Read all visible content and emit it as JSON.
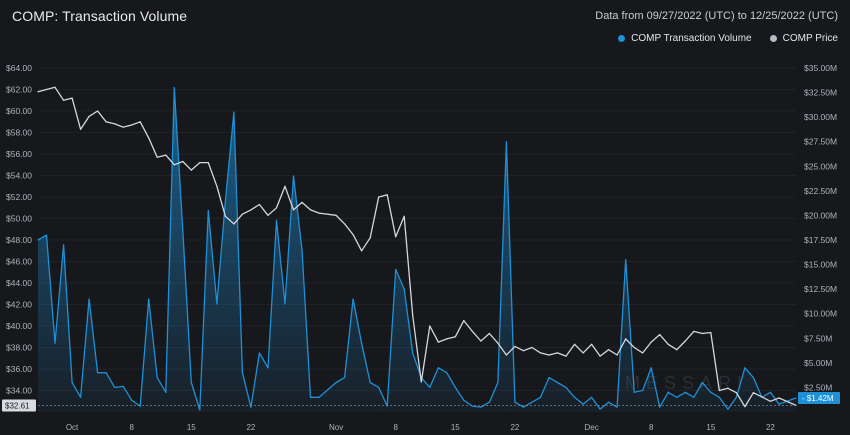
{
  "header": {
    "title": "COMP: Transaction Volume",
    "date_range": "Data from 09/27/2022 (UTC) to 12/25/2022 (UTC)"
  },
  "legend": {
    "items": [
      {
        "label": "COMP Transaction Volume",
        "color": "#1e90d6"
      },
      {
        "label": "COMP Price",
        "color": "#b7bac2"
      }
    ]
  },
  "watermark": "MESSARI",
  "colors": {
    "background": "#17181c",
    "volume": "#1e90d6",
    "price": "#d5d7dc",
    "grid": "#2a2d34"
  },
  "chart_data": {
    "type": "line",
    "title": "COMP: Transaction Volume",
    "x_label": "",
    "x_ticks": [
      "Oct",
      "8",
      "15",
      "22",
      "Nov",
      "8",
      "15",
      "22",
      "Dec",
      "8",
      "15",
      "22"
    ],
    "x_tick_dates": [
      "2022-10-01",
      "2022-10-08",
      "2022-10-15",
      "2022-10-22",
      "2022-11-01",
      "2022-11-08",
      "2022-11-15",
      "2022-11-22",
      "2022-12-01",
      "2022-12-08",
      "2022-12-15",
      "2022-12-22"
    ],
    "x_range": [
      "2022-09-27",
      "2022-12-25"
    ],
    "left_axis": {
      "label": "COMP Price",
      "unit": "$",
      "range": [
        32,
        64
      ],
      "ticks": [
        "$34.00",
        "$36.00",
        "$38.00",
        "$40.00",
        "$42.00",
        "$44.00",
        "$46.00",
        "$48.00",
        "$50.00",
        "$52.00",
        "$54.00",
        "$56.00",
        "$58.00",
        "$60.00",
        "$62.00",
        "$64.00"
      ],
      "current_value_label": "$32.61"
    },
    "right_axis": {
      "label": "COMP Transaction Volume",
      "unit": "$M",
      "range": [
        0,
        35
      ],
      "ticks": [
        "$2.50M",
        "$5.00M",
        "$7.50M",
        "$10.00M",
        "$12.50M",
        "$15.00M",
        "$17.50M",
        "$20.00M",
        "$22.50M",
        "$25.00M",
        "$27.50M",
        "$30.00M",
        "$32.50M",
        "$35.00M"
      ],
      "current_value_label": "$1.42M"
    },
    "grid": true,
    "legend_position": "top-right",
    "series": [
      {
        "name": "COMP Transaction Volume",
        "axis": "right",
        "style": "area",
        "points": [
          [
            "2022-09-27",
            17.5
          ],
          [
            "2022-09-28",
            18.0
          ],
          [
            "2022-09-29",
            7.0
          ],
          [
            "2022-09-30",
            17.0
          ],
          [
            "2022-10-01",
            3.0
          ],
          [
            "2022-10-02",
            1.5
          ],
          [
            "2022-10-03",
            11.5
          ],
          [
            "2022-10-04",
            4.0
          ],
          [
            "2022-10-05",
            4.0
          ],
          [
            "2022-10-06",
            2.5
          ],
          [
            "2022-10-07",
            2.6
          ],
          [
            "2022-10-08",
            1.2
          ],
          [
            "2022-10-09",
            0.6
          ],
          [
            "2022-10-10",
            11.5
          ],
          [
            "2022-10-11",
            3.5
          ],
          [
            "2022-10-12",
            2.0
          ],
          [
            "2022-10-13",
            33.0
          ],
          [
            "2022-10-14",
            18.5
          ],
          [
            "2022-10-15",
            3.0
          ],
          [
            "2022-10-16",
            0.2
          ],
          [
            "2022-10-17",
            20.5
          ],
          [
            "2022-10-18",
            11.0
          ],
          [
            "2022-10-19",
            21.5
          ],
          [
            "2022-10-20",
            30.5
          ],
          [
            "2022-10-21",
            4.0
          ],
          [
            "2022-10-22",
            0.5
          ],
          [
            "2022-10-23",
            6.0
          ],
          [
            "2022-10-24",
            4.5
          ],
          [
            "2022-10-25",
            19.5
          ],
          [
            "2022-10-26",
            11.0
          ],
          [
            "2022-10-27",
            24.0
          ],
          [
            "2022-10-28",
            16.5
          ],
          [
            "2022-10-29",
            1.5
          ],
          [
            "2022-10-30",
            1.5
          ],
          [
            "2022-11-01",
            3.0
          ],
          [
            "2022-11-02",
            3.5
          ],
          [
            "2022-11-03",
            11.5
          ],
          [
            "2022-11-04",
            7.0
          ],
          [
            "2022-11-05",
            3.0
          ],
          [
            "2022-11-06",
            2.5
          ],
          [
            "2022-11-07",
            0.6
          ],
          [
            "2022-11-08",
            14.5
          ],
          [
            "2022-11-09",
            12.5
          ],
          [
            "2022-11-10",
            6.0
          ],
          [
            "2022-11-11",
            3.5
          ],
          [
            "2022-11-12",
            2.5
          ],
          [
            "2022-11-13",
            4.5
          ],
          [
            "2022-11-14",
            4.0
          ],
          [
            "2022-11-15",
            2.5
          ],
          [
            "2022-11-16",
            1.2
          ],
          [
            "2022-11-17",
            0.6
          ],
          [
            "2022-11-18",
            0.5
          ],
          [
            "2022-11-19",
            1.0
          ],
          [
            "2022-11-20",
            3.0
          ],
          [
            "2022-11-21",
            27.5
          ],
          [
            "2022-11-22",
            1.0
          ],
          [
            "2022-11-23",
            0.5
          ],
          [
            "2022-11-24",
            1.0
          ],
          [
            "2022-11-25",
            1.5
          ],
          [
            "2022-11-26",
            3.5
          ],
          [
            "2022-11-27",
            3.0
          ],
          [
            "2022-11-28",
            2.5
          ],
          [
            "2022-11-29",
            1.5
          ],
          [
            "2022-11-30",
            0.8
          ],
          [
            "2022-12-01",
            1.5
          ],
          [
            "2022-12-02",
            0.3
          ],
          [
            "2022-12-03",
            1.0
          ],
          [
            "2022-12-04",
            0.5
          ],
          [
            "2022-12-05",
            15.5
          ],
          [
            "2022-12-06",
            2.0
          ],
          [
            "2022-12-07",
            2.2
          ],
          [
            "2022-12-08",
            4.5
          ],
          [
            "2022-12-09",
            0.5
          ],
          [
            "2022-12-10",
            2.0
          ],
          [
            "2022-12-11",
            1.5
          ],
          [
            "2022-12-12",
            2.0
          ],
          [
            "2022-12-13",
            1.5
          ],
          [
            "2022-12-14",
            3.0
          ],
          [
            "2022-12-15",
            2.0
          ],
          [
            "2022-12-16",
            1.5
          ],
          [
            "2022-12-17",
            0.3
          ],
          [
            "2022-12-18",
            1.5
          ],
          [
            "2022-12-19",
            4.5
          ],
          [
            "2022-12-20",
            3.5
          ],
          [
            "2022-12-21",
            1.5
          ],
          [
            "2022-12-22",
            2.0
          ],
          [
            "2022-12-23",
            0.8
          ],
          [
            "2022-12-25",
            1.42
          ]
        ]
      },
      {
        "name": "COMP Price",
        "axis": "left",
        "style": "line",
        "points": [
          [
            "2022-09-27",
            61.8
          ],
          [
            "2022-09-28",
            62.0
          ],
          [
            "2022-09-29",
            62.2
          ],
          [
            "2022-09-30",
            61.0
          ],
          [
            "2022-10-01",
            61.2
          ],
          [
            "2022-10-02",
            58.3
          ],
          [
            "2022-10-03",
            59.5
          ],
          [
            "2022-10-04",
            60.0
          ],
          [
            "2022-10-05",
            59.0
          ],
          [
            "2022-10-06",
            58.8
          ],
          [
            "2022-10-07",
            58.5
          ],
          [
            "2022-10-08",
            58.7
          ],
          [
            "2022-10-09",
            59.0
          ],
          [
            "2022-10-10",
            57.5
          ],
          [
            "2022-10-11",
            55.7
          ],
          [
            "2022-10-12",
            55.9
          ],
          [
            "2022-10-13",
            55.0
          ],
          [
            "2022-10-14",
            55.3
          ],
          [
            "2022-10-15",
            54.5
          ],
          [
            "2022-10-16",
            55.2
          ],
          [
            "2022-10-17",
            55.2
          ],
          [
            "2022-10-18",
            53.0
          ],
          [
            "2022-10-19",
            50.2
          ],
          [
            "2022-10-20",
            49.5
          ],
          [
            "2022-10-21",
            50.4
          ],
          [
            "2022-10-22",
            50.8
          ],
          [
            "2022-10-23",
            51.3
          ],
          [
            "2022-10-24",
            50.3
          ],
          [
            "2022-10-25",
            51.0
          ],
          [
            "2022-10-26",
            53.0
          ],
          [
            "2022-10-27",
            50.8
          ],
          [
            "2022-10-28",
            51.5
          ],
          [
            "2022-10-29",
            50.8
          ],
          [
            "2022-10-30",
            50.5
          ],
          [
            "2022-11-01",
            50.3
          ],
          [
            "2022-11-02",
            49.5
          ],
          [
            "2022-11-03",
            48.5
          ],
          [
            "2022-11-04",
            47.0
          ],
          [
            "2022-11-05",
            48.2
          ],
          [
            "2022-11-06",
            52.0
          ],
          [
            "2022-11-07",
            52.2
          ],
          [
            "2022-11-08",
            48.3
          ],
          [
            "2022-11-09",
            50.2
          ],
          [
            "2022-11-10",
            41.0
          ],
          [
            "2022-11-11",
            34.8
          ],
          [
            "2022-11-12",
            40.0
          ],
          [
            "2022-11-13",
            38.5
          ],
          [
            "2022-11-14",
            38.8
          ],
          [
            "2022-11-15",
            39.0
          ],
          [
            "2022-11-16",
            40.5
          ],
          [
            "2022-11-17",
            39.5
          ],
          [
            "2022-11-18",
            38.6
          ],
          [
            "2022-11-19",
            39.3
          ],
          [
            "2022-11-20",
            38.4
          ],
          [
            "2022-11-21",
            37.3
          ],
          [
            "2022-11-22",
            38.1
          ],
          [
            "2022-11-23",
            37.7
          ],
          [
            "2022-11-24",
            38.0
          ],
          [
            "2022-11-25",
            37.5
          ],
          [
            "2022-11-26",
            37.3
          ],
          [
            "2022-11-27",
            37.5
          ],
          [
            "2022-11-28",
            37.2
          ],
          [
            "2022-11-29",
            38.3
          ],
          [
            "2022-11-30",
            37.5
          ],
          [
            "2022-12-01",
            38.3
          ],
          [
            "2022-12-02",
            37.2
          ],
          [
            "2022-12-03",
            37.8
          ],
          [
            "2022-12-04",
            37.3
          ],
          [
            "2022-12-05",
            38.8
          ],
          [
            "2022-12-06",
            38.0
          ],
          [
            "2022-12-07",
            37.5
          ],
          [
            "2022-12-08",
            38.5
          ],
          [
            "2022-12-09",
            39.2
          ],
          [
            "2022-12-10",
            38.3
          ],
          [
            "2022-12-11",
            37.8
          ],
          [
            "2022-12-12",
            38.6
          ],
          [
            "2022-12-13",
            39.5
          ],
          [
            "2022-12-14",
            39.3
          ],
          [
            "2022-12-15",
            39.4
          ],
          [
            "2022-12-16",
            34.0
          ],
          [
            "2022-12-17",
            34.2
          ],
          [
            "2022-12-18",
            33.8
          ],
          [
            "2022-12-19",
            32.5
          ],
          [
            "2022-12-20",
            33.8
          ],
          [
            "2022-12-21",
            33.4
          ],
          [
            "2022-12-22",
            33.0
          ],
          [
            "2022-12-23",
            33.3
          ],
          [
            "2022-12-25",
            32.61
          ]
        ]
      }
    ]
  }
}
